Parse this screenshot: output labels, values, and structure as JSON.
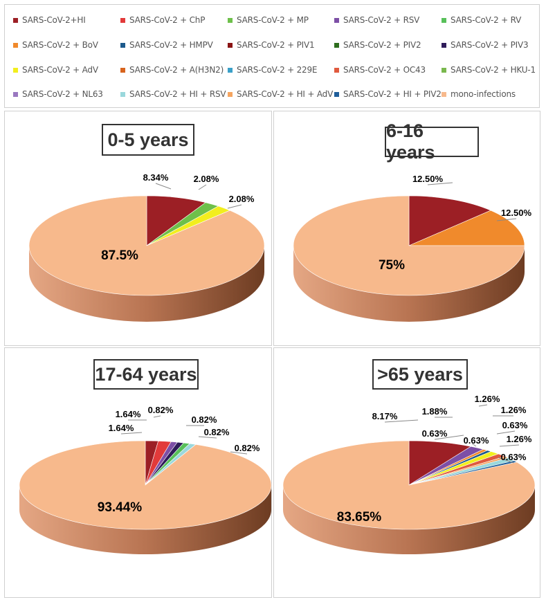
{
  "legend": [
    {
      "label": "SARS-CoV-2+HI",
      "color": "#9c1f25"
    },
    {
      "label": "SARS-CoV-2 + ChP",
      "color": "#e23a3a"
    },
    {
      "label": "SARS-CoV-2 + MP",
      "color": "#6ec04a"
    },
    {
      "label": "SARS-CoV-2 + RSV",
      "color": "#7d4fa6"
    },
    {
      "label": "SARS-CoV-2 + RV",
      "color": "#58c05a"
    },
    {
      "label": "SARS-CoV-2 + BoV",
      "color": "#f08a2c"
    },
    {
      "label": "SARS-CoV-2 + HMPV",
      "color": "#1c5a8c"
    },
    {
      "label": "SARS-CoV-2 + PIV1",
      "color": "#8a1414"
    },
    {
      "label": "SARS-CoV-2 + PIV2",
      "color": "#2e6e1e"
    },
    {
      "label": "SARS-CoV-2 + PIV3",
      "color": "#2f1c5a"
    },
    {
      "label": "SARS-CoV-2 + AdV",
      "color": "#f2ee1e"
    },
    {
      "label": "SARS-CoV-2 + A(H3N2)",
      "color": "#d8641e"
    },
    {
      "label": "SARS-CoV-2 + 229E",
      "color": "#3aa0c8"
    },
    {
      "label": "SARS-CoV-2 + OC43",
      "color": "#e05a3e"
    },
    {
      "label": "SARS-CoV-2 + HKU-1",
      "color": "#7ab84e"
    },
    {
      "label": "SARS-CoV-2 + NL63",
      "color": "#9a78c0"
    },
    {
      "label": "SARS-CoV-2 + HI + RSV",
      "color": "#9ad8dc"
    },
    {
      "label": "SARS-CoV-2 + HI + AdV",
      "color": "#f5a560"
    },
    {
      "label": "SARS-CoV-2 + HI + PIV2",
      "color": "#1f5e9a"
    },
    {
      "label": "mono-infections",
      "color": "#f7b98c"
    }
  ],
  "chart_data": [
    {
      "type": "pie",
      "title": "0-5 years",
      "slices": [
        {
          "name": "SARS-CoV-2+HI",
          "value": 8.34,
          "label": "8.34%",
          "color": "#9c1f25"
        },
        {
          "name": "SARS-CoV-2 + MP",
          "value": 2.08,
          "label": "2.08%",
          "color": "#6ec04a"
        },
        {
          "name": "SARS-CoV-2 + AdV",
          "value": 2.08,
          "label": "2.08%",
          "color": "#f2ee1e"
        },
        {
          "name": "mono-infections",
          "value": 87.5,
          "label": "87.5%",
          "color": "#f7b98c"
        }
      ]
    },
    {
      "type": "pie",
      "title": "6-16 years",
      "slices": [
        {
          "name": "SARS-CoV-2+HI",
          "value": 12.5,
          "label": "12.50%",
          "color": "#9c1f25"
        },
        {
          "name": "SARS-CoV-2 + BoV",
          "value": 12.5,
          "label": "12.50%",
          "color": "#f08a2c"
        },
        {
          "name": "mono-infections",
          "value": 75,
          "label": "75%",
          "color": "#f7b98c"
        }
      ]
    },
    {
      "type": "pie",
      "title": "17-64 years",
      "slices": [
        {
          "name": "SARS-CoV-2+HI",
          "value": 1.64,
          "label": "1.64%",
          "color": "#9c1f25"
        },
        {
          "name": "SARS-CoV-2 + ChP",
          "value": 1.64,
          "label": "1.64%",
          "color": "#e23a3a"
        },
        {
          "name": "SARS-CoV-2 + RSV",
          "value": 0.82,
          "label": "0.82%",
          "color": "#7d4fa6"
        },
        {
          "name": "SARS-CoV-2 + PIV3",
          "value": 0.82,
          "label": "0.82%",
          "color": "#2f1c5a"
        },
        {
          "name": "SARS-CoV-2 + RV",
          "value": 0.82,
          "label": "0.82%",
          "color": "#58c05a"
        },
        {
          "name": "SARS-CoV-2 + HI + RSV",
          "value": 0.82,
          "label": "0.82%",
          "color": "#9ad8dc"
        },
        {
          "name": "mono-infections",
          "value": 93.44,
          "label": "93.44%",
          "color": "#f7b98c"
        }
      ]
    },
    {
      "type": "pie",
      "title": ">65 years",
      "slices": [
        {
          "name": "SARS-CoV-2+HI",
          "value": 8.17,
          "label": "8.17%",
          "color": "#9c1f25"
        },
        {
          "name": "SARS-CoV-2 + RSV",
          "value": 1.88,
          "label": "1.88%",
          "color": "#7d4fa6"
        },
        {
          "name": "SARS-CoV-2 + BoV",
          "value": 0.63,
          "label": "0.63%",
          "color": "#f08a2c"
        },
        {
          "name": "SARS-CoV-2 + HMPV",
          "value": 0.63,
          "label": "0.63%",
          "color": "#1c5a8c"
        },
        {
          "name": "SARS-CoV-2 + AdV",
          "value": 1.26,
          "label": "1.26%",
          "color": "#f2ee1e"
        },
        {
          "name": "SARS-CoV-2 + OC43",
          "value": 1.26,
          "label": "1.26%",
          "color": "#e05a3e"
        },
        {
          "name": "SARS-CoV-2 + HI + AdV",
          "value": 0.63,
          "label": "0.63%",
          "color": "#f5a560"
        },
        {
          "name": "SARS-CoV-2 + HI + RSV",
          "value": 1.26,
          "label": "1.26%",
          "color": "#9ad8dc"
        },
        {
          "name": "SARS-CoV-2 + HI + PIV2",
          "value": 0.63,
          "label": "0.63%",
          "color": "#1f5e9a"
        },
        {
          "name": "mono-infections",
          "value": 83.65,
          "label": "83.65%",
          "color": "#f7b98c"
        }
      ]
    }
  ]
}
